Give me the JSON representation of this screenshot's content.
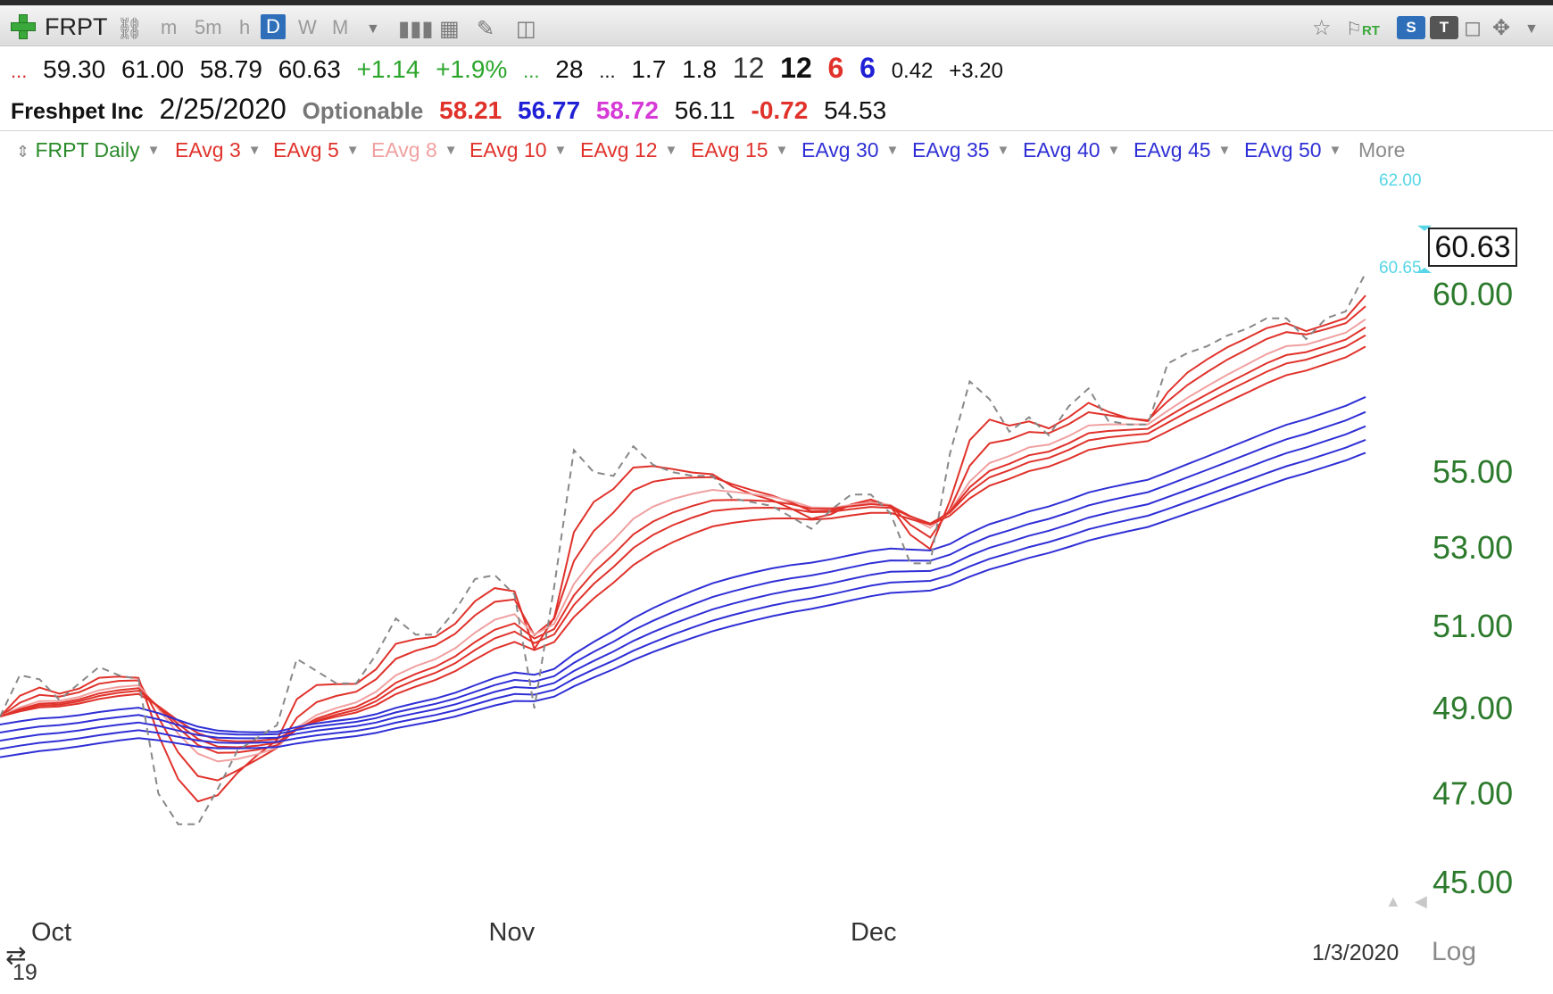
{
  "toolbar": {
    "symbol": "FRPT",
    "timeframes": [
      "m",
      "5m",
      "h",
      "D",
      "W",
      "M"
    ],
    "selected_timeframe": "D",
    "icons": [
      "add-symbol-icon",
      "link-icon",
      "dropdown-icon",
      "bar-style-icon",
      "table-icon",
      "pencil-icon",
      "note-icon",
      "star-icon",
      "rt-flag-icon",
      "s-box-icon",
      "t-box-icon",
      "save-icon",
      "move-icon",
      "chevron-down-icon"
    ],
    "rt_label": "RT",
    "s_label": "S",
    "t_label": "T"
  },
  "quote": {
    "dots": "...",
    "open": "59.30",
    "high": "61.00",
    "low": "58.79",
    "close": "60.63",
    "change": "+1.14",
    "change_pct": "+1.9%",
    "ellipsis1": "...",
    "val28": "28",
    "ellipsis2": "...",
    "val1_7": "1.7",
    "val1_8": "1.8",
    "val12a": "12",
    "val12b": "12",
    "val6a": "6",
    "val6b": "6",
    "val042": "0.42",
    "val320": "+3.20",
    "name": "Freshpet Inc",
    "date": "2/25/2020",
    "optionable": "Optionable",
    "v1": "58.21",
    "v2": "56.77",
    "v3": "58.72",
    "v4": "56.11",
    "v5": "-0.72",
    "v6": "54.53"
  },
  "legend": {
    "main": "FRPT Daily",
    "items": [
      "EAvg 3",
      "EAvg 5",
      "EAvg 8",
      "EAvg 10",
      "EAvg 12",
      "EAvg 15",
      "EAvg 30",
      "EAvg 35",
      "EAvg 40",
      "EAvg 45",
      "EAvg 50"
    ],
    "more": "More"
  },
  "colors": {
    "short_ema": "#e0322b",
    "short_ema_light": "#f0a0a0",
    "long_ema": "#2f2fd6",
    "price": "#888888",
    "axis_text": "#2c7a2c",
    "accent_cyan": "#56d6e6"
  },
  "chart_data": {
    "type": "line",
    "log_scale": true,
    "ylim": [
      44.2,
      63.5
    ],
    "y_ticks": [
      "45.00",
      "47.00",
      "49.00",
      "51.00",
      "53.00",
      "55.00",
      "60.00"
    ],
    "x_ticks": [
      "Oct",
      "Nov",
      "Dec"
    ],
    "last_price": "60.63",
    "marker_high": "62.00",
    "marker_low": "60.65",
    "crosshair_date": "1/3/2020",
    "year_label": "19",
    "log_label": "Log",
    "close": [
      48.8,
      49.8,
      49.7,
      49.2,
      49.6,
      50.0,
      49.8,
      49.7,
      47.0,
      46.3,
      46.3,
      47.1,
      48.0,
      48.3,
      48.6,
      50.2,
      49.9,
      49.6,
      49.6,
      50.3,
      51.2,
      50.8,
      50.8,
      51.4,
      52.2,
      52.3,
      51.8,
      49.0,
      52.0,
      55.6,
      55.0,
      54.9,
      55.7,
      55.2,
      55.0,
      54.9,
      54.9,
      54.3,
      54.2,
      54.1,
      53.8,
      53.5,
      54.0,
      54.4,
      54.4,
      53.9,
      52.6,
      52.6,
      55.5,
      57.5,
      57.0,
      56.1,
      56.5,
      56.0,
      56.8,
      57.3,
      56.4,
      56.3,
      56.3,
      58.0,
      58.3,
      58.5,
      58.8,
      59.0,
      59.3,
      59.3,
      58.7,
      59.3,
      59.5,
      60.63
    ],
    "series": [
      {
        "name": "EAvg 3",
        "period": 3,
        "color": "#e0322b"
      },
      {
        "name": "EAvg 5",
        "period": 5,
        "color": "#e0322b"
      },
      {
        "name": "EAvg 8",
        "period": 8,
        "color": "#f0a0a0"
      },
      {
        "name": "EAvg 10",
        "period": 10,
        "color": "#e0322b"
      },
      {
        "name": "EAvg 12",
        "period": 12,
        "color": "#e0322b"
      },
      {
        "name": "EAvg 15",
        "period": 15,
        "color": "#e0322b"
      },
      {
        "name": "EAvg 30",
        "period": 30,
        "color": "#2f2fd6"
      },
      {
        "name": "EAvg 35",
        "period": 35,
        "color": "#2f2fd6"
      },
      {
        "name": "EAvg 40",
        "period": 40,
        "color": "#2f2fd6"
      },
      {
        "name": "EAvg 45",
        "period": 45,
        "color": "#2f2fd6"
      },
      {
        "name": "EAvg 50",
        "period": 50,
        "color": "#2f2fd6"
      }
    ],
    "long_seed": [
      48.6,
      48.4,
      48.2,
      48.0,
      47.8
    ]
  }
}
